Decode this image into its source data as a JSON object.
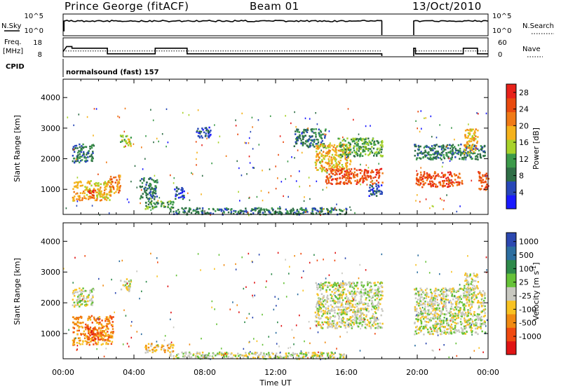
{
  "header": {
    "station": "Prince George (fitACF)",
    "beam": "Beam 01",
    "date": "13/Oct/2010"
  },
  "side_labels": {
    "nsky": "N.Sky",
    "freq": "Freq.",
    "freq_unit": "[MHz]",
    "cpid": "CPID",
    "nsearch": "N.Search",
    "nave": "Nave",
    "cpid_text": "normalsound (fast) 157"
  },
  "status_ticks": {
    "noise_left": [
      "10^5",
      "10^0"
    ],
    "noise_right": [
      "10^5",
      "10^0"
    ],
    "freq_left": [
      "18",
      "8"
    ],
    "nave_right": [
      "60",
      "0"
    ]
  },
  "colors": {
    "power": [
      "#1a1aff",
      "#2848b8",
      "#2f6e46",
      "#3c9a4a",
      "#a8d22a",
      "#f5b21c",
      "#f07a16",
      "#e94a0e",
      "#e8221a"
    ],
    "velocity": [
      "#e01414",
      "#f04a10",
      "#f08a12",
      "#f8c222",
      "#c8c8c0",
      "#66c238",
      "#2e8a4a",
      "#2c6ea0",
      "#2c48b0"
    ]
  },
  "chart_data": [
    {
      "type": "heatmap",
      "panel": "power",
      "title": "Prince George (fitACF)  Beam 01  13/Oct/2010",
      "xlabel": "Time UT",
      "ylabel": "Slant Range [km]",
      "x_ticks": [
        "00:00",
        "04:00",
        "08:00",
        "12:00",
        "16:00",
        "20:00",
        "00:00"
      ],
      "x_range_hours": [
        0,
        24
      ],
      "y_ticks": [
        1000,
        2000,
        3000,
        4000
      ],
      "y_range_km": [
        180,
        4600
      ],
      "data_gap_hours": [
        18.0,
        19.8
      ],
      "colorbar": {
        "label": "Power [dB]",
        "ticks": [
          4,
          8,
          12,
          16,
          20,
          24,
          28
        ],
        "range": [
          0,
          30
        ]
      },
      "regions": [
        {
          "t": [
            0.5,
            1.7
          ],
          "r": [
            1900,
            2500
          ],
          "level": 2
        },
        {
          "t": [
            0.5,
            2.7
          ],
          "r": [
            650,
            1300
          ],
          "level": 5
        },
        {
          "t": [
            1.4,
            1.8
          ],
          "r": [
            750,
            1000
          ],
          "level": 8
        },
        {
          "t": [
            3.2,
            3.8
          ],
          "r": [
            2400,
            2800
          ],
          "level": 4
        },
        {
          "t": [
            2.6,
            3.2
          ],
          "r": [
            900,
            1500
          ],
          "level": 6
        },
        {
          "t": [
            4.3,
            5.3
          ],
          "r": [
            700,
            1400
          ],
          "level": 2
        },
        {
          "t": [
            4.6,
            6.2
          ],
          "r": [
            380,
            650
          ],
          "level": 3
        },
        {
          "t": [
            6.2,
            6.8
          ],
          "r": [
            700,
            1100
          ],
          "level": 1
        },
        {
          "t": [
            7.5,
            8.3
          ],
          "r": [
            2700,
            3100
          ],
          "level": 1
        },
        {
          "t": [
            6.0,
            16.0
          ],
          "r": [
            200,
            420
          ],
          "level": 2
        },
        {
          "t": [
            13.0,
            14.8
          ],
          "r": [
            2400,
            3000
          ],
          "level": 2
        },
        {
          "t": [
            14.2,
            16.2
          ],
          "r": [
            1600,
            2500
          ],
          "level": 5
        },
        {
          "t": [
            14.8,
            18.0
          ],
          "r": [
            1200,
            1700
          ],
          "level": 7
        },
        {
          "t": [
            15.5,
            18.0
          ],
          "r": [
            2100,
            2700
          ],
          "level": 3
        },
        {
          "t": [
            17.2,
            18.0
          ],
          "r": [
            800,
            1200
          ],
          "level": 1
        },
        {
          "t": [
            19.8,
            23.8
          ],
          "r": [
            2000,
            2500
          ],
          "level": 2
        },
        {
          "t": [
            19.9,
            22.5
          ],
          "r": [
            1100,
            1600
          ],
          "level": 7
        },
        {
          "t": [
            22.6,
            23.4
          ],
          "r": [
            2200,
            3000
          ],
          "level": 5
        },
        {
          "t": [
            23.4,
            24.0
          ],
          "r": [
            1000,
            1600
          ],
          "level": 7
        }
      ]
    },
    {
      "type": "heatmap",
      "panel": "velocity",
      "xlabel": "Time UT",
      "ylabel": "Slant Range [km]",
      "x_ticks": [
        "00:00",
        "04:00",
        "08:00",
        "12:00",
        "16:00",
        "20:00",
        "00:00"
      ],
      "x_range_hours": [
        0,
        24
      ],
      "y_ticks": [
        1000,
        2000,
        3000,
        4000
      ],
      "y_range_km": [
        180,
        4600
      ],
      "data_gap_hours": [
        18.0,
        19.8
      ],
      "colorbar": {
        "label": "Velocity [m s^-1]",
        "ticks": [
          "1000",
          "500",
          "100",
          "25",
          "-25",
          "-100",
          "-500",
          "-1000"
        ]
      },
      "regions": [
        {
          "t": [
            0.5,
            1.7
          ],
          "r": [
            1900,
            2500
          ],
          "level": 4
        },
        {
          "t": [
            0.5,
            2.8
          ],
          "r": [
            650,
            1600
          ],
          "level": 2
        },
        {
          "t": [
            1.3,
            2.0
          ],
          "r": [
            800,
            1200
          ],
          "level": 1
        },
        {
          "t": [
            3.2,
            3.8
          ],
          "r": [
            2400,
            2800
          ],
          "level": 4
        },
        {
          "t": [
            4.6,
            6.2
          ],
          "r": [
            400,
            700
          ],
          "level": 3
        },
        {
          "t": [
            6.0,
            16.0
          ],
          "r": [
            200,
            420
          ],
          "level": 4
        },
        {
          "t": [
            14.2,
            18.0
          ],
          "r": [
            1200,
            2700
          ],
          "level": 4
        },
        {
          "t": [
            19.8,
            23.8
          ],
          "r": [
            1000,
            2500
          ],
          "level": 4
        },
        {
          "t": [
            22.6,
            23.4
          ],
          "r": [
            2200,
            3000
          ],
          "level": 4
        }
      ]
    }
  ]
}
